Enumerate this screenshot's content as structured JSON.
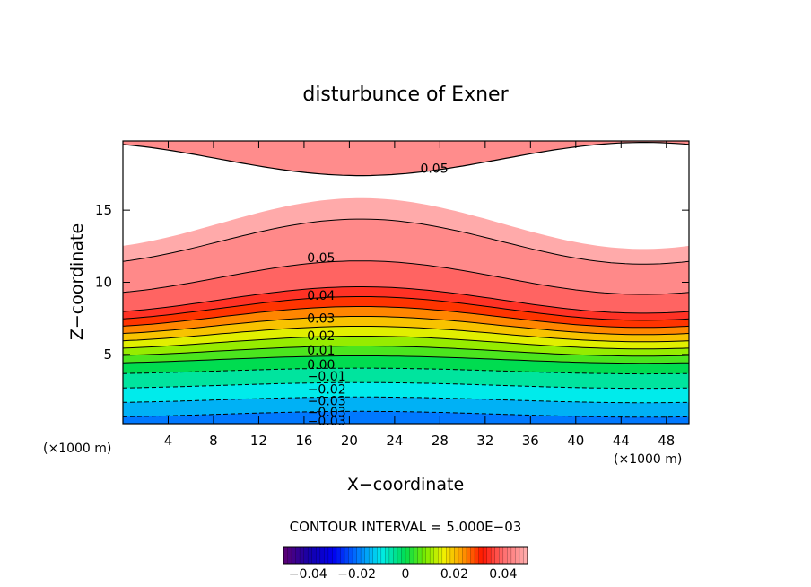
{
  "chart_data": {
    "type": "contour",
    "title": "disturbunce of Exner",
    "xlabel": "X−coordinate",
    "ylabel": "Z−coordinate",
    "x_unit_left": "(×1000 m)",
    "x_unit_right": "(×1000 m)",
    "xlim": [
      0,
      50
    ],
    "ylim": [
      0.2,
      19.8
    ],
    "x_ticks": [
      4,
      8,
      12,
      16,
      20,
      24,
      28,
      32,
      36,
      40,
      44,
      48
    ],
    "x_tick_labels": [
      "4",
      "8",
      "12",
      "16",
      "20",
      "24",
      "28",
      "32",
      "36",
      "40",
      "44",
      "48"
    ],
    "y_ticks": [
      5,
      10,
      15
    ],
    "y_tick_labels": [
      "5",
      "10",
      "15"
    ],
    "contour_interval_text": "CONTOUR INTERVAL = 5.000E−03",
    "contour_interval": 0.005,
    "colorbar": {
      "range": [
        -0.05,
        0.05
      ],
      "tick_values": [
        -0.04,
        -0.02,
        0,
        0.02,
        0.04
      ],
      "tick_labels": [
        "−0.04",
        "−0.02",
        "0",
        "0.02",
        "0.04"
      ]
    },
    "contour_labels": [
      {
        "text": "0.05",
        "x": 27.5,
        "z": 17.9
      },
      {
        "text": "0.05",
        "x": 17.5,
        "z": 11.7
      },
      {
        "text": "0.04",
        "x": 17.5,
        "z": 9.1
      },
      {
        "text": "0.03",
        "x": 17.5,
        "z": 7.5
      },
      {
        "text": "0.02",
        "x": 17.5,
        "z": 6.3
      },
      {
        "text": "0.01",
        "x": 17.5,
        "z": 5.3
      },
      {
        "text": "0.00",
        "x": 17.5,
        "z": 4.3
      },
      {
        "text": "−0.01",
        "x": 18.0,
        "z": 3.5
      },
      {
        "text": "−0.02",
        "x": 18.0,
        "z": 2.6
      },
      {
        "text": "−0.03",
        "x": 18.0,
        "z": 1.8
      },
      {
        "text": "−0.03",
        "x": 18.0,
        "z": 1.0
      },
      {
        "text": "−0.03",
        "x": 18.0,
        "z": 0.4
      }
    ]
  }
}
